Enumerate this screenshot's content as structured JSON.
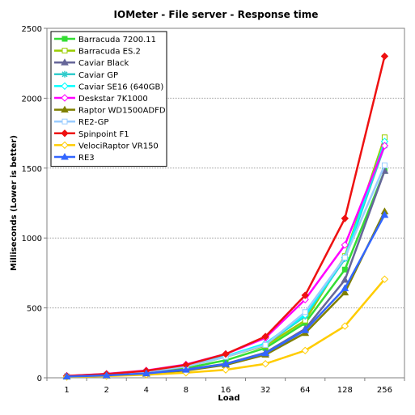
{
  "chart_data": {
    "type": "line",
    "title": "IOMeter - File server - Response time",
    "xlabel": "Load",
    "ylabel": "Milliseconds (Lower is better)",
    "categories": [
      "1",
      "2",
      "4",
      "8",
      "16",
      "32",
      "64",
      "128",
      "256"
    ],
    "ylim": [
      0,
      2500
    ],
    "yticks": [
      0,
      500,
      1000,
      1500,
      2000,
      2500
    ],
    "grid": true,
    "legend_position": "top-left",
    "series": [
      {
        "name": "Barracuda 7200.11",
        "color": "#33dd33",
        "marker": "square",
        "values": [
          10,
          20,
          37,
          69,
          125,
          213,
          392,
          774,
          1480
        ]
      },
      {
        "name": "Barracuda ES.2",
        "color": "#99cc00",
        "marker": "square-open",
        "values": [
          11,
          22,
          43,
          80,
          150,
          230,
          410,
          870,
          1720
        ]
      },
      {
        "name": "Caviar Black",
        "color": "#666699",
        "marker": "triangle",
        "values": [
          9,
          18,
          33,
          60,
          100,
          180,
          350,
          700,
          1480
        ]
      },
      {
        "name": "Caviar GP",
        "color": "#33cccc",
        "marker": "star",
        "values": [
          12,
          24,
          45,
          82,
          150,
          240,
          440,
          850,
          1660
        ]
      },
      {
        "name": "Caviar SE16 (640GB)",
        "color": "#00ffff",
        "marker": "diamond-open",
        "values": [
          12,
          24,
          45,
          83,
          154,
          245,
          450,
          860,
          1690
        ]
      },
      {
        "name": "Deskstar 7K1000",
        "color": "#ff00ff",
        "marker": "diamond-open",
        "values": [
          14,
          28,
          52,
          95,
          170,
          285,
          560,
          950,
          1660
        ]
      },
      {
        "name": "Raptor WD1500ADFD",
        "color": "#808000",
        "marker": "triangle",
        "values": [
          8,
          15,
          28,
          52,
          92,
          165,
          320,
          610,
          1190
        ]
      },
      {
        "name": "RE2-GP",
        "color": "#99ccff",
        "marker": "square-open",
        "values": [
          12,
          23,
          44,
          81,
          150,
          235,
          470,
          860,
          1520
        ]
      },
      {
        "name": "Spinpoint F1",
        "color": "#ee1111",
        "marker": "diamond",
        "values": [
          13,
          27,
          50,
          92,
          170,
          295,
          590,
          1140,
          2300
        ]
      },
      {
        "name": "VelociRaptor VR150",
        "color": "#ffcc00",
        "marker": "diamond-open",
        "values": [
          6,
          12,
          22,
          36,
          57,
          100,
          195,
          370,
          705
        ]
      },
      {
        "name": "RE3",
        "color": "#3366ff",
        "marker": "triangle",
        "values": [
          9,
          17,
          31,
          57,
          98,
          175,
          340,
          640,
          1165
        ]
      }
    ]
  }
}
